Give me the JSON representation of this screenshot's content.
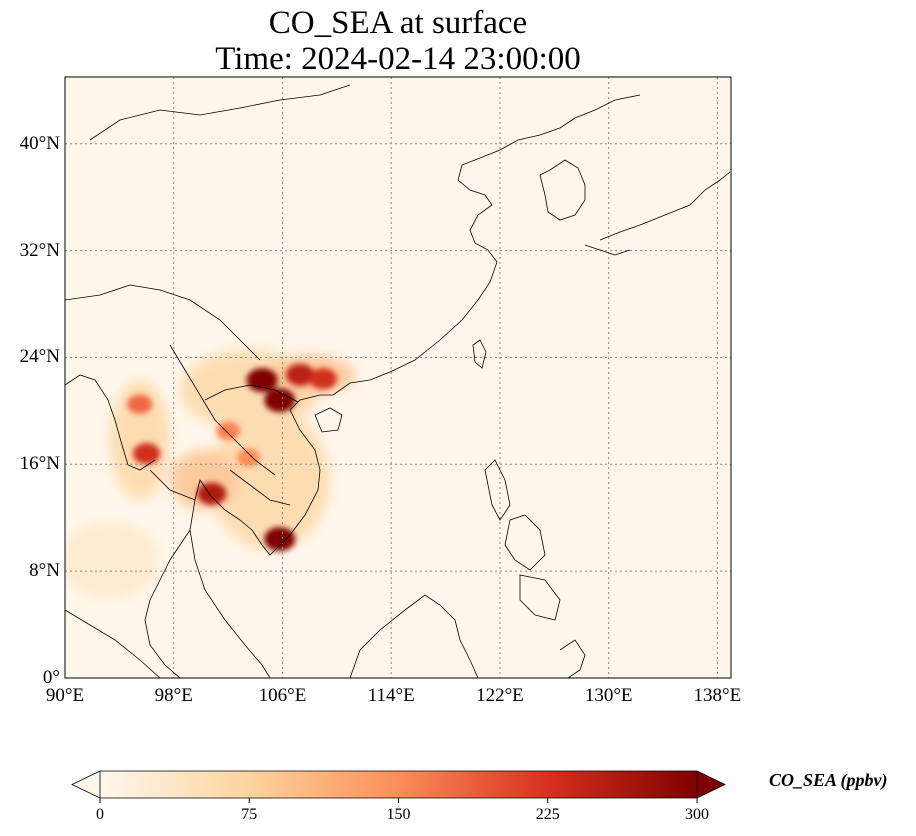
{
  "title": {
    "line1": "CO_SEA at surface",
    "line2": "Time: 2024-02-14 23:00:00"
  },
  "map": {
    "projection": "PlateCarree",
    "lon_range": [
      90,
      139
    ],
    "lat_range": [
      0,
      45
    ],
    "gridlines": "dotted",
    "x_ticks": [
      "90°E",
      "98°E",
      "106°E",
      "114°E",
      "122°E",
      "130°E",
      "138°E"
    ],
    "y_ticks": [
      "0°",
      "8°N",
      "16°N",
      "24°N",
      "32°N",
      "40°N"
    ],
    "x_tick_values": [
      90,
      98,
      106,
      114,
      122,
      130,
      138
    ],
    "y_tick_values": [
      0,
      8,
      16,
      24,
      32,
      40
    ],
    "colormap": "OrRd",
    "background_color": "#fff7ec",
    "hotspots_ppbv": [
      {
        "lon": 104.5,
        "lat": 22.3,
        "value": 300
      },
      {
        "lon": 105.8,
        "lat": 20.8,
        "value": 300
      },
      {
        "lon": 107.3,
        "lat": 22.7,
        "value": 250
      },
      {
        "lon": 109.0,
        "lat": 22.4,
        "value": 230
      },
      {
        "lon": 105.8,
        "lat": 10.4,
        "value": 300
      },
      {
        "lon": 100.8,
        "lat": 13.8,
        "value": 260
      },
      {
        "lon": 96.0,
        "lat": 16.8,
        "value": 230
      },
      {
        "lon": 95.5,
        "lat": 20.5,
        "value": 180
      },
      {
        "lon": 102.0,
        "lat": 18.5,
        "value": 160
      },
      {
        "lon": 103.5,
        "lat": 16.5,
        "value": 150
      }
    ]
  },
  "colorbar": {
    "label": "CO_SEA (ppbv)",
    "ticks": [
      "0",
      "75",
      "150",
      "225",
      "300"
    ],
    "tick_values": [
      0,
      75,
      150,
      225,
      300
    ],
    "range": [
      0,
      300
    ],
    "extend": "both"
  }
}
